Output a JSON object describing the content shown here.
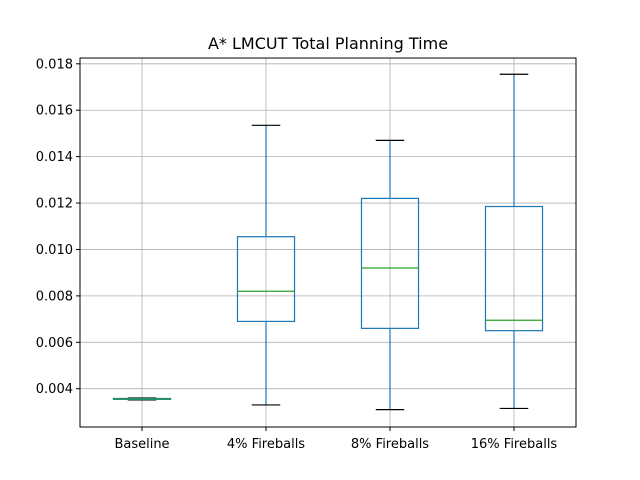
{
  "chart_data": {
    "type": "box",
    "title": "A* LMCUT Total Planning Time",
    "xlabel": "",
    "ylabel": "",
    "categories": [
      "Baseline",
      "4% Fireballs",
      "8% Fireballs",
      "16% Fireballs"
    ],
    "boxes": [
      {
        "name": "Baseline",
        "whislo": 0.00352,
        "q1": 0.00354,
        "med": 0.00356,
        "q3": 0.00358,
        "whishi": 0.0036
      },
      {
        "name": "4% Fireballs",
        "whislo": 0.0033,
        "q1": 0.0069,
        "med": 0.0082,
        "q3": 0.01055,
        "whishi": 0.01535
      },
      {
        "name": "8% Fireballs",
        "whislo": 0.0031,
        "q1": 0.0066,
        "med": 0.0092,
        "q3": 0.0122,
        "whishi": 0.0147
      },
      {
        "name": "16% Fireballs",
        "whislo": 0.00315,
        "q1": 0.0065,
        "med": 0.00695,
        "q3": 0.01185,
        "whishi": 0.01755
      }
    ],
    "yticks": [
      0.004,
      0.006,
      0.008,
      0.01,
      0.012,
      0.014,
      0.016,
      0.018
    ],
    "ytick_labels": [
      "0.004",
      "0.006",
      "0.008",
      "0.010",
      "0.012",
      "0.014",
      "0.016",
      "0.018"
    ],
    "ylim": [
      0.00235,
      0.01825
    ],
    "grid": true,
    "colors": {
      "box": "#1f77b4",
      "median": "#2ca02c",
      "cap": "#000000",
      "grid": "#b0b0b0"
    }
  }
}
